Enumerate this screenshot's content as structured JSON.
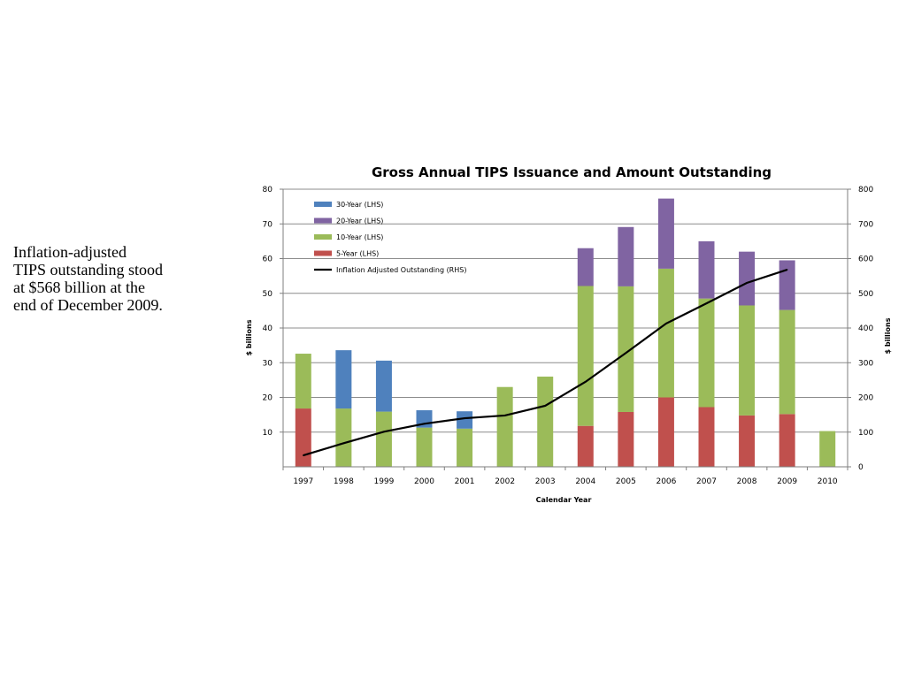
{
  "note": {
    "lines": [
      "Inflation-adjusted",
      "TIPS outstanding stood",
      "at $568 billion at the",
      "end of December 2009."
    ]
  },
  "chart_data": {
    "type": "bar",
    "title": "Gross Annual TIPS Issuance and Amount Outstanding",
    "xlabel": "Calendar Year",
    "ylabel": "$ billions",
    "ylabel_right": "$ billions",
    "ylim": [
      0,
      80
    ],
    "ylim_right": [
      0,
      800
    ],
    "yticks": [
      10,
      20,
      30,
      40,
      50,
      60,
      70,
      80
    ],
    "yticks_right": [
      0,
      100,
      200,
      300,
      400,
      500,
      600,
      700,
      800
    ],
    "grid": true,
    "legend_position": "top-left",
    "categories": [
      "1997",
      "1998",
      "1999",
      "2000",
      "2001",
      "2002",
      "2003",
      "2004",
      "2005",
      "2006",
      "2007",
      "2008",
      "2009",
      "2010"
    ],
    "stacked_series": [
      {
        "name": "5-Year (LHS)",
        "color": "#c0504d",
        "values": [
          16.8,
          0,
          0,
          0,
          0,
          0,
          0,
          11.8,
          15.8,
          20.0,
          17.2,
          14.8,
          15.2,
          0
        ]
      },
      {
        "name": "10-Year (LHS)",
        "color": "#9bbb59",
        "values": [
          15.8,
          16.8,
          15.9,
          11.3,
          11.0,
          23.0,
          26.0,
          40.3,
          36.2,
          37.1,
          31.3,
          31.7,
          30.0,
          10.3
        ]
      },
      {
        "name": "20-Year (LHS)",
        "color": "#8064a2",
        "values": [
          0,
          0,
          0,
          0,
          0,
          0,
          0,
          10.9,
          17.1,
          20.2,
          16.5,
          15.5,
          14.3,
          0
        ]
      },
      {
        "name": "30-Year (LHS)",
        "color": "#4f81bd",
        "values": [
          0,
          16.8,
          14.7,
          5.0,
          5.0,
          0,
          0,
          0,
          0,
          0,
          0,
          0,
          0,
          0
        ]
      }
    ],
    "line_series": {
      "name": "Inflation Adjusted Outstanding (RHS)",
      "color": "#000000",
      "axis": "right",
      "values": [
        33,
        68,
        101,
        124,
        140,
        148,
        176,
        245,
        328,
        413,
        471,
        530,
        568,
        null
      ]
    },
    "legend_order": [
      "30-Year (LHS)",
      "20-Year (LHS)",
      "10-Year (LHS)",
      "5-Year (LHS)",
      "Inflation Adjusted Outstanding (RHS)"
    ]
  }
}
